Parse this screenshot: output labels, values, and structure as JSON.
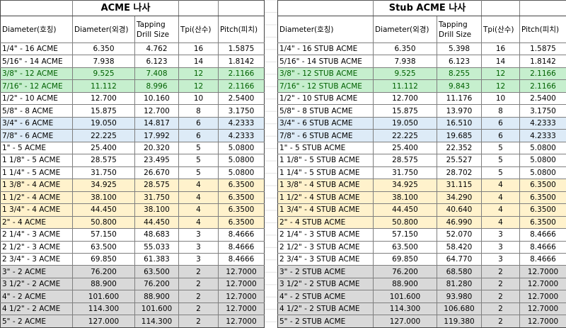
{
  "colors": {
    "green_bg": "#c6efce",
    "green_text": "#006100",
    "blue_bg": "#ddebf7",
    "yellow_bg": "#fff2cc",
    "gray_bg": "#d9d9d9",
    "white_bg": "#ffffff"
  },
  "row_groups": [
    "white",
    "white",
    "green",
    "green",
    "white",
    "white",
    "blue",
    "blue",
    "white",
    "white",
    "white",
    "yellow",
    "yellow",
    "yellow",
    "yellow",
    "white",
    "white",
    "white",
    "gray",
    "gray",
    "gray",
    "gray",
    "gray"
  ],
  "tables": [
    {
      "title": "ACME 나사",
      "headers": [
        "Diameter(호칭)",
        "Diameter(외경)",
        "Tapping Drill Size",
        "Tpi(산수)",
        "Pitch(피치)"
      ],
      "rows": [
        [
          "1/4\" - 16 ACME",
          "6.350",
          "4.762",
          "16",
          "1.5875"
        ],
        [
          "5/16\" - 14 ACME",
          "7.938",
          "6.123",
          "14",
          "1.8142"
        ],
        [
          "3/8\" - 12 ACME",
          "9.525",
          "7.408",
          "12",
          "2.1166"
        ],
        [
          "7/16\" - 12 ACME",
          "11.112",
          "8.996",
          "12",
          "2.1166"
        ],
        [
          "1/2\" - 10 ACME",
          "12.700",
          "10.160",
          "10",
          "2.5400"
        ],
        [
          "5/8\" - 8 ACME",
          "15.875",
          "12.700",
          "8",
          "3.1750"
        ],
        [
          "3/4\" - 6 ACME",
          "19.050",
          "14.817",
          "6",
          "4.2333"
        ],
        [
          "7/8\" - 6 ACME",
          "22.225",
          "17.992",
          "6",
          "4.2333"
        ],
        [
          "1\" - 5 ACME",
          "25.400",
          "20.320",
          "5",
          "5.0800"
        ],
        [
          "1 1/8\" - 5 ACME",
          "28.575",
          "23.495",
          "5",
          "5.0800"
        ],
        [
          "1 1/4\" - 5 ACME",
          "31.750",
          "26.670",
          "5",
          "5.0800"
        ],
        [
          "1 3/8\" - 4 ACME",
          "34.925",
          "28.575",
          "4",
          "6.3500"
        ],
        [
          "1 1/2\" - 4 ACME",
          "38.100",
          "31.750",
          "4",
          "6.3500"
        ],
        [
          "1 3/4\" - 4 ACME",
          "44.450",
          "38.100",
          "4",
          "6.3500"
        ],
        [
          "2\" - 4 ACME",
          "50.800",
          "44.450",
          "4",
          "6.3500"
        ],
        [
          "2 1/4\" - 3 ACME",
          "57.150",
          "48.683",
          "3",
          "8.4666"
        ],
        [
          "2 1/2\" - 3 ACME",
          "63.500",
          "55.033",
          "3",
          "8.4666"
        ],
        [
          "2 3/4\" - 3 ACME",
          "69.850",
          "61.383",
          "3",
          "8.4666"
        ],
        [
          "3\" - 2 ACME",
          "76.200",
          "63.500",
          "2",
          "12.7000"
        ],
        [
          "3 1/2\" - 2 ACME",
          "88.900",
          "76.200",
          "2",
          "12.7000"
        ],
        [
          "4\" - 2 ACME",
          "101.600",
          "88.900",
          "2",
          "12.7000"
        ],
        [
          "4 1/2\" - 2 ACME",
          "114.300",
          "101.600",
          "2",
          "12.7000"
        ],
        [
          "5\" - 2 ACME",
          "127.000",
          "114.300",
          "2",
          "12.7000"
        ]
      ]
    },
    {
      "title": "Stub ACME 나사",
      "headers": [
        "Diameter(호칭)",
        "Diameter(외경)",
        "Tapping Drill Size",
        "Tpi(산수)",
        "Pitch(피치)"
      ],
      "rows": [
        [
          "1/4\" - 16 STUB ACME",
          "6.350",
          "5.398",
          "16",
          "1.5875"
        ],
        [
          "5/16\" - 14 STUB ACME",
          "7.938",
          "6.123",
          "14",
          "1.8142"
        ],
        [
          "3/8\" - 12 STUB ACME",
          "9.525",
          "8.255",
          "12",
          "2.1166"
        ],
        [
          "7/16\" - 12 STUB ACME",
          "11.112",
          "9.843",
          "12",
          "2.1166"
        ],
        [
          "1/2\" - 10 STUB ACME",
          "12.700",
          "11.176",
          "10",
          "2.5400"
        ],
        [
          "5/8\" - 8 STUB ACME",
          "15.875",
          "13.970",
          "8",
          "3.1750"
        ],
        [
          "3/4\" - 6 STUB ACME",
          "19.050",
          "16.510",
          "6",
          "4.2333"
        ],
        [
          "7/8\" - 6 STUB ACME",
          "22.225",
          "19.685",
          "6",
          "4.2333"
        ],
        [
          "1\" - 5 STUB ACME",
          "25.400",
          "22.352",
          "5",
          "5.0800"
        ],
        [
          "1 1/8\" - 5 STUB ACME",
          "28.575",
          "25.527",
          "5",
          "5.0800"
        ],
        [
          "1 1/4\" - 5 STUB ACME",
          "31.750",
          "28.702",
          "5",
          "5.0800"
        ],
        [
          "1 3/8\" - 4 STUB ACME",
          "34.925",
          "31.115",
          "4",
          "6.3500"
        ],
        [
          "1 1/2\" - 4 STUB ACME",
          "38.100",
          "34.290",
          "4",
          "6.3500"
        ],
        [
          "1 3/4\" - 4 STUB ACME",
          "44.450",
          "40.640",
          "4",
          "6.3500"
        ],
        [
          "2\" - 4 STUB ACME",
          "50.800",
          "46.990",
          "4",
          "6.3500"
        ],
        [
          "2 1/4\" - 3 STUB ACME",
          "57.150",
          "52.070",
          "3",
          "8.4666"
        ],
        [
          "2 1/2\" - 3 STUB ACME",
          "63.500",
          "58.420",
          "3",
          "8.4666"
        ],
        [
          "2 3/4\" - 3 STUB ACME",
          "69.850",
          "64.770",
          "3",
          "8.4666"
        ],
        [
          "3\" - 2 STUB ACME",
          "76.200",
          "68.580",
          "2",
          "12.7000"
        ],
        [
          "3 1/2\" - 2 STUB ACME",
          "88.900",
          "81.280",
          "2",
          "12.7000"
        ],
        [
          "4\" - 2 STUB ACME",
          "101.600",
          "93.980",
          "2",
          "12.7000"
        ],
        [
          "4 1/2\" - 2 STUB ACME",
          "114.300",
          "106.680",
          "2",
          "12.7000"
        ],
        [
          "5\" - 2 STUB ACME",
          "127.000",
          "119.380",
          "2",
          "12.7000"
        ]
      ]
    }
  ]
}
